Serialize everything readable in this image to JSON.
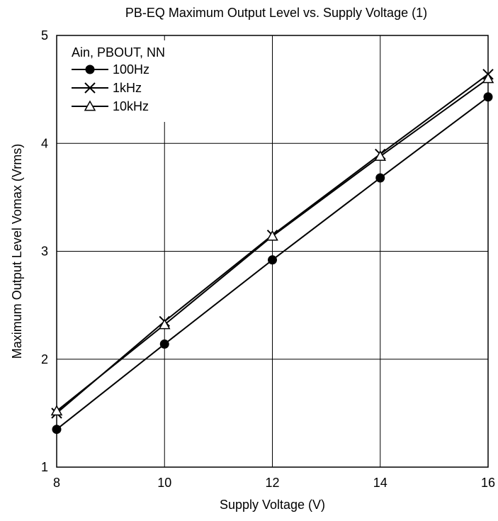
{
  "chart_data": {
    "type": "line",
    "title": "PB-EQ Maximum Output Level vs. Supply Voltage (1)",
    "xlabel": "Supply Voltage  (V)",
    "ylabel": "Maximum Output Level  Vomax  (Vrms)",
    "xlim": [
      8,
      16
    ],
    "ylim": [
      1,
      5
    ],
    "xticks": [
      8,
      10,
      12,
      14,
      16
    ],
    "yticks": [
      1,
      2,
      3,
      4,
      5
    ],
    "grid": true,
    "legend": {
      "title": "Ain, PBOUT, NN",
      "placement": "top-left"
    },
    "x": [
      8,
      10,
      12,
      14,
      16
    ],
    "series": [
      {
        "name": "100Hz",
        "marker": "filled-circle",
        "color": "#000000",
        "values": [
          1.35,
          2.14,
          2.92,
          3.68,
          4.43
        ]
      },
      {
        "name": "1kHz",
        "marker": "x",
        "color": "#000000",
        "values": [
          1.5,
          2.35,
          3.15,
          3.9,
          4.64
        ]
      },
      {
        "name": "10kHz",
        "marker": "open-triangle",
        "color": "#000000",
        "values": [
          1.52,
          2.32,
          3.14,
          3.88,
          4.6
        ]
      }
    ]
  }
}
